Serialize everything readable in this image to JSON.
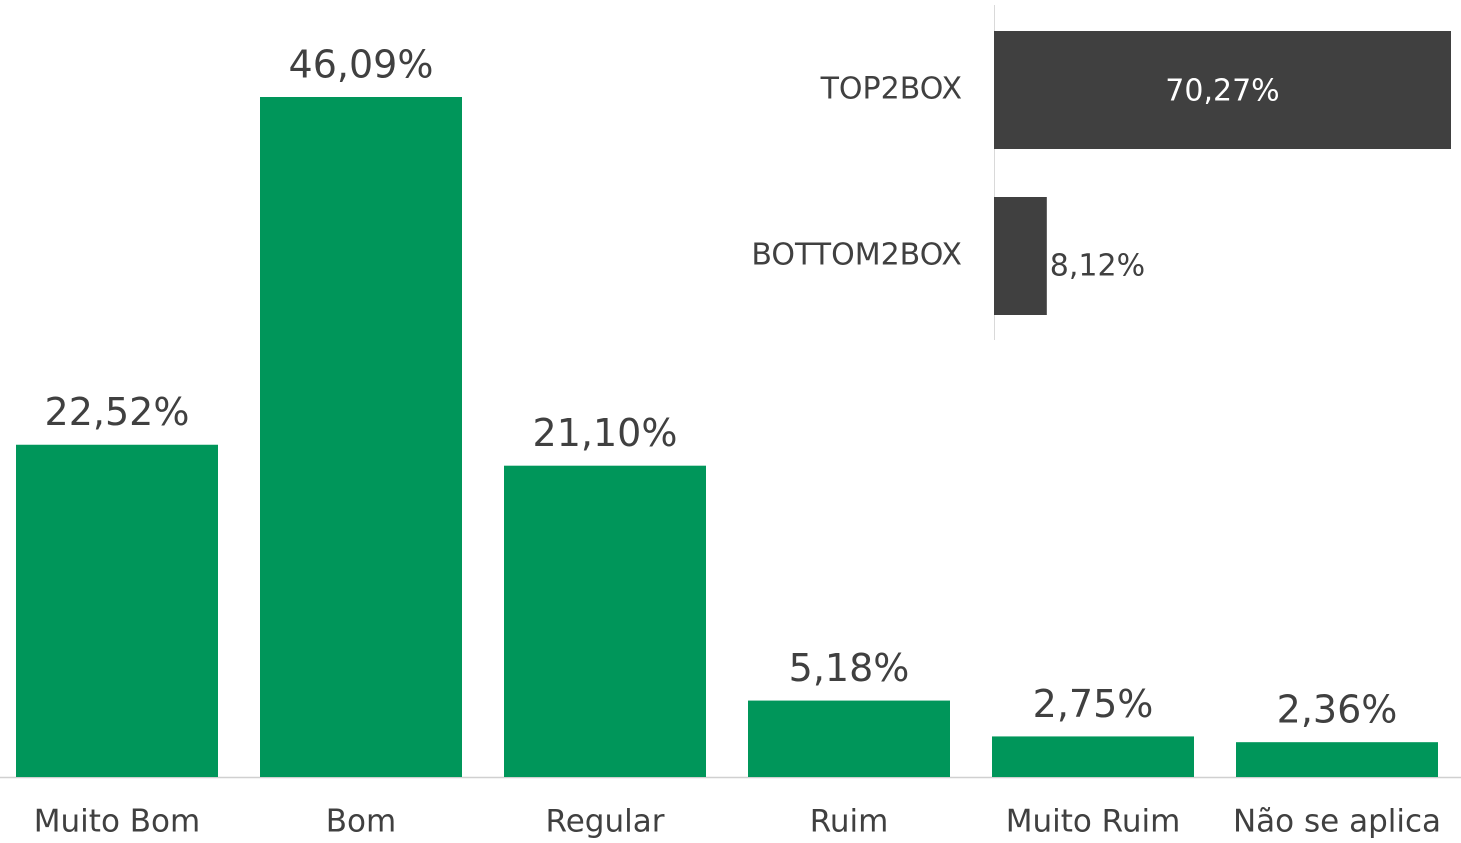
{
  "chart_data": [
    {
      "type": "bar",
      "categories": [
        "Muito Bom",
        "Bom",
        "Regular",
        "Ruim",
        "Muito Ruim",
        "Não se aplica"
      ],
      "values": [
        22.52,
        46.09,
        21.1,
        5.18,
        2.75,
        2.36
      ],
      "value_labels": [
        "22,52%",
        "46,09%",
        "21,10%",
        "5,18%",
        "2,75%",
        "2,36%"
      ],
      "color": "#00965a"
    },
    {
      "type": "barh",
      "categories": [
        "TOP2BOX",
        "BOTTOM2BOX"
      ],
      "values": [
        70.27,
        8.12
      ],
      "value_labels": [
        "70,27%",
        "8,12%"
      ],
      "color": "#404040"
    }
  ]
}
